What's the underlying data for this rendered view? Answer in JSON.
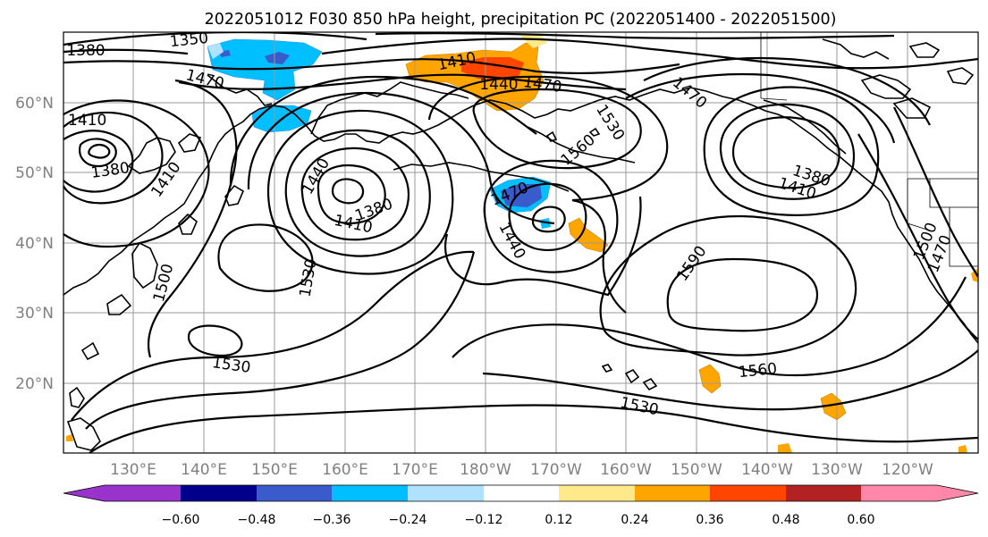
{
  "title": "2022051012 F030 850 hPa height, precipitation PC (2022051400 - 2022051500)",
  "map": {
    "lat_labels": [
      "60°N",
      "50°N",
      "40°N",
      "30°N",
      "20°N"
    ],
    "lon_labels": [
      "130°E",
      "140°E",
      "150°E",
      "160°E",
      "170°E",
      "180°W",
      "170°W",
      "160°W",
      "150°W",
      "140°W",
      "130°W",
      "120°W"
    ],
    "contour_labels": [
      "1380",
      "1350",
      "1410",
      "1470",
      "1470",
      "1470",
      "1410",
      "1380",
      "1410",
      "1440",
      "1380",
      "1410",
      "1530",
      "1560",
      "1440",
      "1470",
      "1440",
      "1380",
      "1410",
      "1590",
      "1530",
      "1500",
      "1530",
      "1560",
      "1530",
      "1500",
      "1470"
    ]
  },
  "colorbar": {
    "ticks": [
      "−0.60",
      "−0.48",
      "−0.36",
      "−0.24",
      "−0.12",
      "0.12",
      "0.24",
      "0.36",
      "0.48",
      "0.60"
    ],
    "colors": [
      "#9933cc",
      "#00008b",
      "#3a5bcc",
      "#00bfff",
      "#b0e2ff",
      "#ffffff",
      "#ffe98a",
      "#ffa500",
      "#ff4500",
      "#b22222",
      "#ff88aa"
    ]
  }
}
